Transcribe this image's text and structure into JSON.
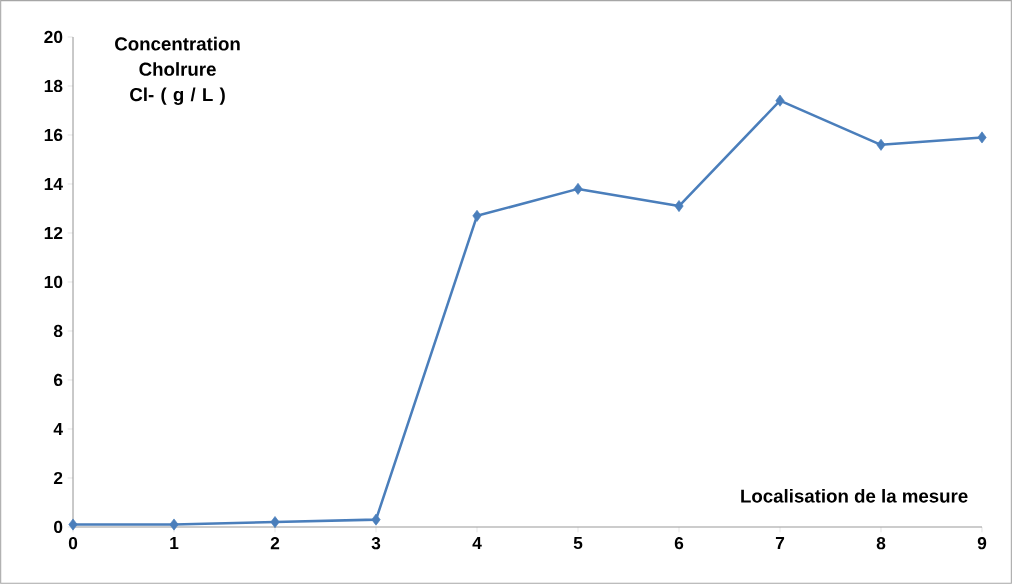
{
  "chart_data": {
    "type": "line",
    "xlabel": "Localisation de la mesure",
    "ylabel": "Concentration Cholrure Cl- ( g / L )",
    "x": [
      0,
      1,
      2,
      3,
      4,
      5,
      6,
      7,
      8,
      9
    ],
    "series": [
      {
        "color": "#4a7ebb",
        "values": [
          0.1,
          0.1,
          0.2,
          0.3,
          12.7,
          13.8,
          13.1,
          17.4,
          15.6,
          15.9
        ]
      }
    ],
    "xlim": [
      0,
      9
    ],
    "xticks": [
      0,
      1,
      2,
      3,
      4,
      5,
      6,
      7,
      8,
      9
    ],
    "ylim": [
      0,
      20
    ],
    "yticks": [
      0,
      2,
      4,
      6,
      8,
      10,
      12,
      14,
      16,
      18,
      20
    ],
    "grid": false,
    "legend": false,
    "marker": "diamond",
    "line_style": "solid"
  }
}
